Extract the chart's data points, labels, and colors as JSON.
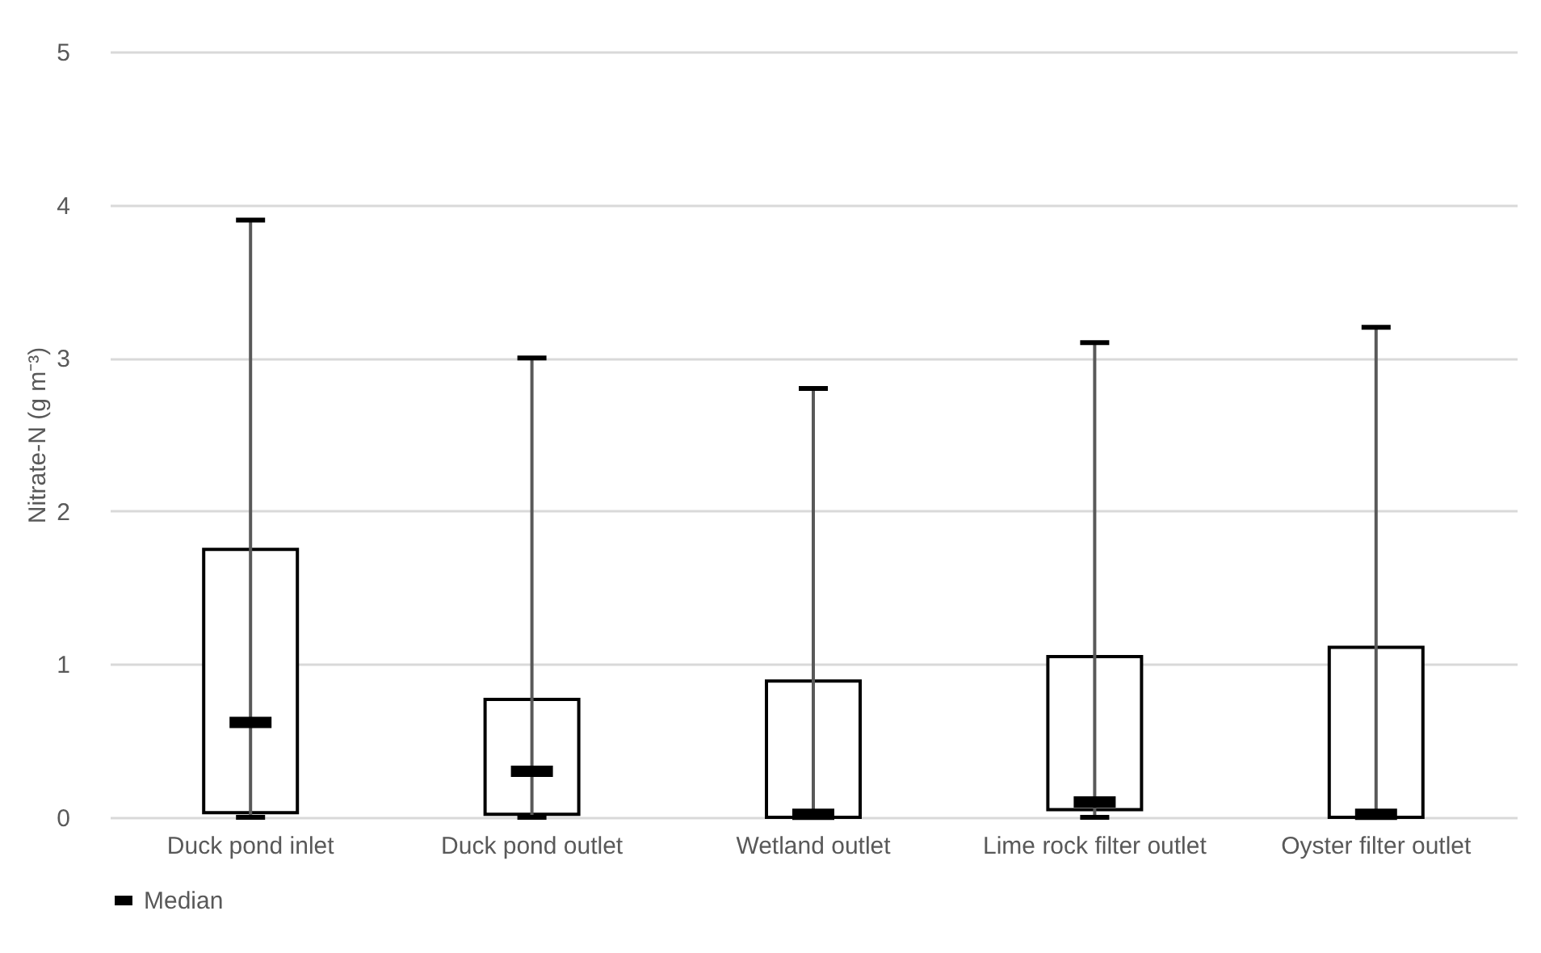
{
  "chart_data": {
    "type": "box",
    "ylabel": "Nitrate-N (g m⁻³)",
    "categories": [
      "Duck pond inlet",
      "Duck pond outlet",
      "Wetland outlet",
      "Lime rock filter outlet",
      "Oyster filter outlet"
    ],
    "series": [
      {
        "name": "Median",
        "color": "#000000",
        "boxes": [
          {
            "low": 0,
            "q1": 0.03,
            "median": 0.62,
            "q3": 1.75,
            "high": 3.9
          },
          {
            "low": 0,
            "q1": 0.02,
            "median": 0.3,
            "q3": 0.77,
            "high": 3.0
          },
          {
            "low": 0,
            "q1": 0,
            "median": 0.02,
            "q3": 0.89,
            "high": 2.8
          },
          {
            "low": 0,
            "q1": 0.05,
            "median": 0.1,
            "q3": 1.05,
            "high": 3.1
          },
          {
            "low": 0,
            "q1": 0,
            "median": 0.02,
            "q3": 1.11,
            "high": 3.2
          }
        ]
      }
    ],
    "ylim": [
      0,
      5
    ],
    "yticks": [
      0,
      1,
      2,
      3,
      4,
      5
    ],
    "grid": "y",
    "legend": "bottom"
  }
}
